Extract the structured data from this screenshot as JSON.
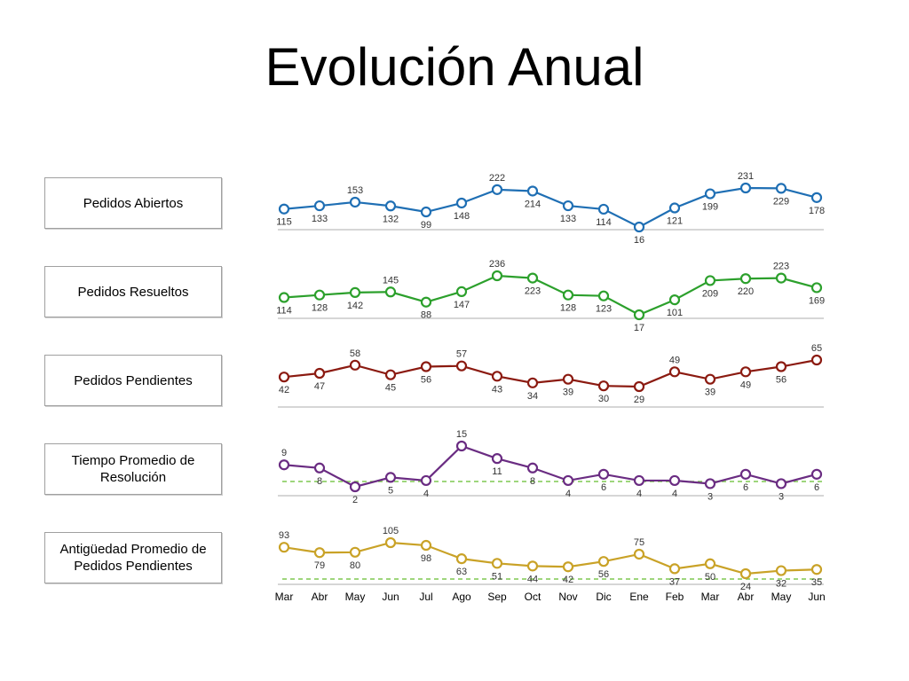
{
  "title": "Evolución Anual",
  "chart_data": {
    "type": "line",
    "categories": [
      "Mar",
      "Abr",
      "May",
      "Jun",
      "Jul",
      "Ago",
      "Sep",
      "Oct",
      "Nov",
      "Dic",
      "Ene",
      "Feb",
      "Mar",
      "Abr",
      "May",
      "Jun"
    ],
    "grid": false,
    "series": [
      {
        "name": "Pedidos Abiertos",
        "color": "#1f6fb4",
        "values": [
          115,
          133,
          153,
          132,
          99,
          148,
          222,
          214,
          133,
          114,
          16,
          121,
          199,
          231,
          229,
          178
        ]
      },
      {
        "name": "Pedidos Resueltos",
        "color": "#2ca02c",
        "values": [
          114,
          128,
          142,
          145,
          88,
          147,
          236,
          223,
          128,
          123,
          17,
          101,
          209,
          220,
          223,
          169
        ]
      },
      {
        "name": "Pedidos Pendientes",
        "color": "#8b1a10",
        "values": [
          42,
          47,
          58,
          45,
          56,
          57,
          43,
          34,
          39,
          30,
          29,
          49,
          39,
          49,
          56,
          65
        ]
      },
      {
        "name": "Tiempo Promedio de Resolución",
        "color": "#6a2c82",
        "values": [
          9,
          8,
          2,
          5,
          4,
          15,
          11,
          8,
          4,
          6,
          4,
          4,
          3,
          6,
          3,
          6
        ]
      },
      {
        "name": "Antigüedad Promedio de Pedidos Pendientes",
        "color": "#c9a227",
        "values": [
          93,
          79,
          80,
          105,
          98,
          63,
          51,
          44,
          42,
          56,
          75,
          37,
          50,
          24,
          32,
          35
        ]
      }
    ]
  },
  "colors": {
    "target_line": "#7ec850",
    "baseline": "#c8c8c8"
  }
}
